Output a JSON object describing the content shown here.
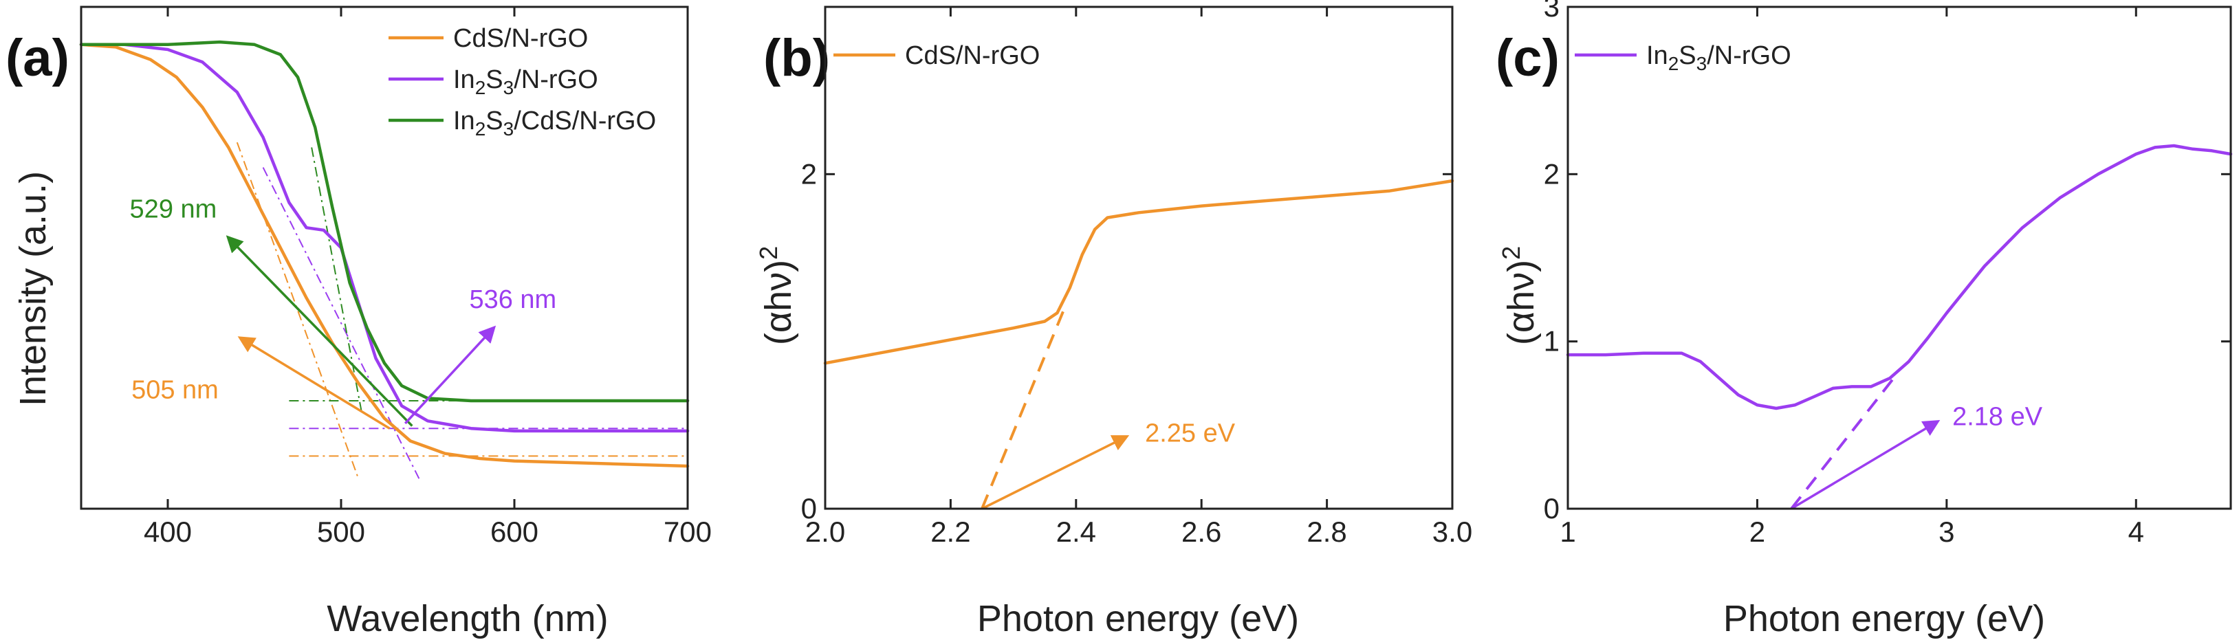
{
  "colors": {
    "cds": "#f0932b",
    "in2s3": "#9b3df0",
    "composite": "#2e8b22",
    "axis": "#222222"
  },
  "chart_data": [
    {
      "type": "line",
      "panel_label": "(a)",
      "title": "",
      "xlabel": "Wavelength (nm)",
      "ylabel": "Intensity (a.u.)",
      "xlim": [
        350,
        700
      ],
      "ylim": [
        0,
        1
      ],
      "xticks": [
        "400",
        "500",
        "600",
        "700"
      ],
      "xtick_values": [
        400,
        500,
        600,
        700
      ],
      "yticks_shown": false,
      "legend": {
        "position": "top-right",
        "entries": [
          {
            "key": "cds",
            "main": "CdS/N-rGO"
          },
          {
            "key": "in2s3",
            "runs": [
              [
                "In",
                ""
              ],
              [
                "2",
                "sub"
              ],
              [
                "S",
                ""
              ],
              [
                "3",
                "sub"
              ],
              [
                "/N-rGO",
                ""
              ]
            ]
          },
          {
            "key": "composite",
            "runs": [
              [
                "In",
                ""
              ],
              [
                "2",
                "sub"
              ],
              [
                "S",
                ""
              ],
              [
                "3",
                "sub"
              ],
              [
                "/CdS/N-rGO",
                ""
              ]
            ]
          }
        ]
      },
      "series": [
        {
          "key": "cds",
          "name": "CdS/N-rGO",
          "x": [
            350,
            370,
            390,
            405,
            420,
            435,
            450,
            465,
            480,
            495,
            510,
            525,
            540,
            560,
            580,
            600,
            650,
            700
          ],
          "y": [
            0.925,
            0.92,
            0.895,
            0.86,
            0.8,
            0.72,
            0.62,
            0.52,
            0.42,
            0.33,
            0.25,
            0.18,
            0.135,
            0.11,
            0.1,
            0.095,
            0.09,
            0.085
          ]
        },
        {
          "key": "in2s3",
          "name": "In2S3/N-rGO",
          "x": [
            350,
            375,
            400,
            420,
            440,
            455,
            470,
            480,
            490,
            500,
            510,
            520,
            535,
            550,
            575,
            600,
            650,
            700
          ],
          "y": [
            0.925,
            0.925,
            0.915,
            0.89,
            0.83,
            0.74,
            0.61,
            0.56,
            0.555,
            0.52,
            0.41,
            0.3,
            0.205,
            0.175,
            0.16,
            0.155,
            0.155,
            0.155
          ]
        },
        {
          "key": "composite",
          "name": "In2S3/CdS/N-rGO",
          "x": [
            350,
            400,
            430,
            450,
            465,
            475,
            485,
            495,
            505,
            515,
            525,
            535,
            550,
            575,
            600,
            650,
            700
          ],
          "y": [
            0.925,
            0.925,
            0.93,
            0.925,
            0.905,
            0.86,
            0.76,
            0.6,
            0.45,
            0.36,
            0.29,
            0.245,
            0.22,
            0.215,
            0.215,
            0.215,
            0.215
          ]
        }
      ],
      "tangents": [
        {
          "key": "cds",
          "x": [
            440,
            510
          ],
          "y": [
            0.73,
            0.06
          ]
        },
        {
          "key": "cds",
          "x": [
            470,
            700
          ],
          "y": [
            0.105,
            0.105
          ]
        },
        {
          "key": "in2s3",
          "x": [
            455,
            545
          ],
          "y": [
            0.68,
            0.06
          ]
        },
        {
          "key": "in2s3",
          "x": [
            470,
            700
          ],
          "y": [
            0.16,
            0.16
          ]
        },
        {
          "key": "composite",
          "x": [
            483,
            512
          ],
          "y": [
            0.72,
            0.19
          ]
        },
        {
          "key": "composite",
          "x": [
            470,
            700
          ],
          "y": [
            0.215,
            0.215
          ]
        }
      ],
      "arrows": [
        {
          "key": "composite",
          "x": [
            541,
            435
          ],
          "y": [
            0.165,
            0.54
          ]
        },
        {
          "key": "in2s3",
          "x": [
            537,
            588
          ],
          "y": [
            0.17,
            0.36
          ]
        },
        {
          "key": "cds",
          "x": [
            528,
            442
          ],
          "y": [
            0.16,
            0.34
          ]
        }
      ],
      "annotations": [
        {
          "key": "composite",
          "text": "529 nm",
          "x": 378,
          "y": 0.58
        },
        {
          "key": "in2s3",
          "text": "536 nm",
          "x": 574,
          "y": 0.4
        },
        {
          "key": "cds",
          "text": "505 nm",
          "x": 379,
          "y": 0.22
        }
      ]
    },
    {
      "type": "line",
      "panel_label": "(b)",
      "title": "",
      "xlabel": "Photon energy (eV)",
      "ylabel": "(αhν)",
      "ylabel_sup": "2",
      "xlim": [
        2.0,
        3.0
      ],
      "ylim": [
        0,
        3
      ],
      "xticks": [
        "2.0",
        "2.2",
        "2.4",
        "2.6",
        "2.8",
        "3.0"
      ],
      "xtick_values": [
        2.0,
        2.2,
        2.4,
        2.6,
        2.8,
        3.0
      ],
      "yticks": [
        "0",
        "2"
      ],
      "ytick_values": [
        0,
        2
      ],
      "legend": {
        "position": "top-left",
        "entries": [
          {
            "key": "cds",
            "main": "CdS/N-rGO"
          }
        ]
      },
      "series": [
        {
          "key": "cds",
          "name": "CdS/N-rGO",
          "x": [
            2.0,
            2.1,
            2.2,
            2.3,
            2.35,
            2.37,
            2.39,
            2.41,
            2.43,
            2.45,
            2.5,
            2.6,
            2.7,
            2.8,
            2.9,
            3.0
          ],
          "y": [
            0.87,
            0.94,
            1.01,
            1.08,
            1.12,
            1.17,
            1.32,
            1.52,
            1.67,
            1.74,
            1.77,
            1.81,
            1.84,
            1.87,
            1.9,
            1.96
          ]
        }
      ],
      "tangents": [
        {
          "key": "cds",
          "x": [
            2.25,
            2.385
          ],
          "y": [
            0.0,
            1.23
          ]
        }
      ],
      "arrows": [
        {
          "key": "cds",
          "x": [
            2.25,
            2.48
          ],
          "y": [
            0.0,
            0.43
          ]
        }
      ],
      "annotations": [
        {
          "key": "cds",
          "text": "2.25 eV",
          "x": 2.51,
          "y": 0.4
        }
      ]
    },
    {
      "type": "line",
      "panel_label": "(c)",
      "title": "",
      "xlabel": "Photon energy (eV)",
      "ylabel": "(αhν)",
      "ylabel_sup": "2",
      "xlim": [
        1,
        4.5
      ],
      "ylim": [
        0,
        3
      ],
      "xticks": [
        "1",
        "2",
        "3",
        "4"
      ],
      "xtick_values": [
        1,
        2,
        3,
        4
      ],
      "yticks": [
        "0",
        "1",
        "2",
        "3"
      ],
      "ytick_values": [
        0,
        1,
        2,
        3
      ],
      "legend": {
        "position": "top-left",
        "entries": [
          {
            "key": "in2s3",
            "runs": [
              [
                "In",
                ""
              ],
              [
                "2",
                "sub"
              ],
              [
                "S",
                ""
              ],
              [
                "3",
                "sub"
              ],
              [
                "/N-rGO",
                ""
              ]
            ]
          }
        ]
      },
      "series": [
        {
          "key": "in2s3",
          "name": "In2S3/N-rGO",
          "x": [
            1.0,
            1.2,
            1.4,
            1.6,
            1.7,
            1.8,
            1.9,
            2.0,
            2.1,
            2.2,
            2.3,
            2.4,
            2.5,
            2.6,
            2.7,
            2.8,
            2.9,
            3.0,
            3.2,
            3.4,
            3.6,
            3.8,
            4.0,
            4.1,
            4.2,
            4.3,
            4.4,
            4.5
          ],
          "y": [
            0.92,
            0.92,
            0.93,
            0.93,
            0.88,
            0.78,
            0.68,
            0.62,
            0.6,
            0.62,
            0.67,
            0.72,
            0.73,
            0.73,
            0.78,
            0.88,
            1.02,
            1.17,
            1.45,
            1.68,
            1.86,
            2.0,
            2.12,
            2.16,
            2.17,
            2.15,
            2.14,
            2.12
          ]
        }
      ],
      "tangents": [
        {
          "key": "in2s3",
          "x": [
            2.18,
            2.72
          ],
          "y": [
            0.0,
            0.78
          ]
        }
      ],
      "arrows": [
        {
          "key": "in2s3",
          "x": [
            2.18,
            2.95
          ],
          "y": [
            0.0,
            0.52
          ]
        }
      ],
      "annotations": [
        {
          "key": "in2s3",
          "text": "2.18 eV",
          "x": 3.03,
          "y": 0.5
        }
      ]
    }
  ]
}
